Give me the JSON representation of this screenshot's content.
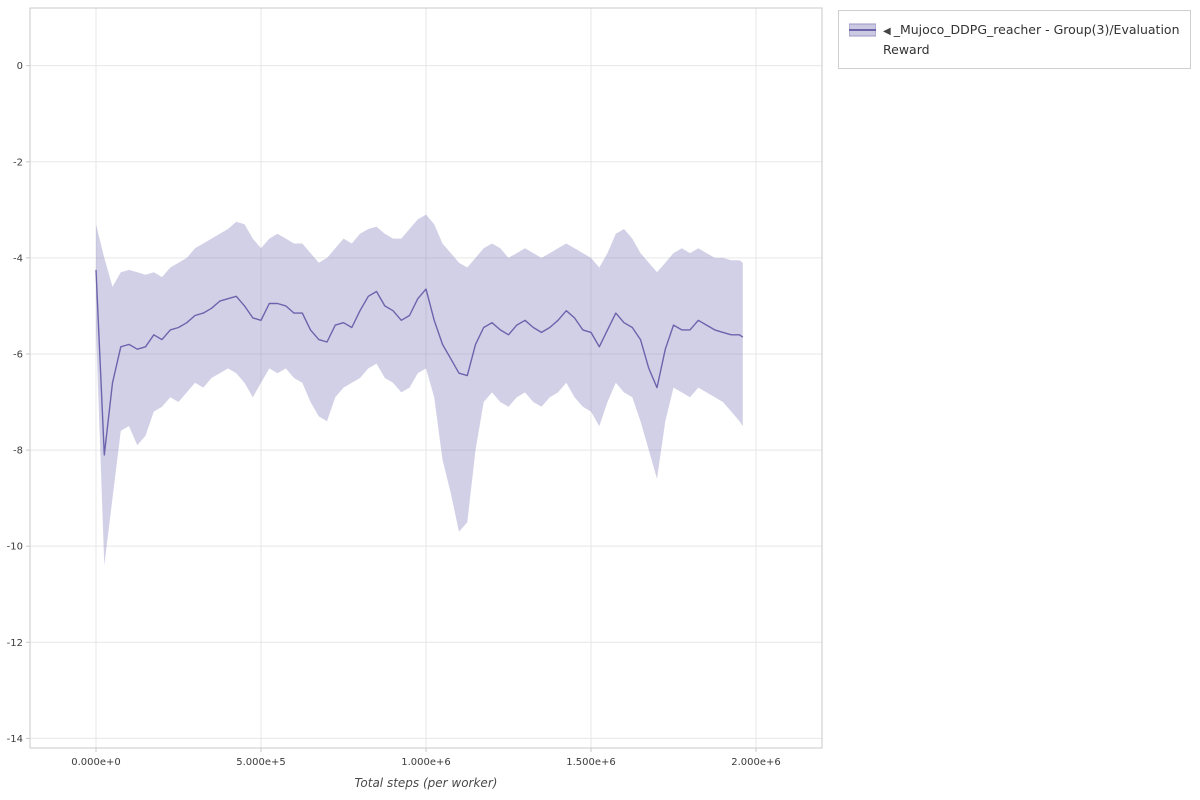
{
  "page": {
    "background": "#ffffff"
  },
  "legend": {
    "toggle_icon_glyph": "◀",
    "entry_label": "_Mujoco_DDPG_reacher - Group(3)/Evaluation Reward"
  },
  "chart_data": {
    "type": "line",
    "title": "",
    "xlabel": "Total steps (per worker)",
    "ylabel": "",
    "xlim": [
      -200000,
      2200000
    ],
    "ylim": [
      -14.2,
      1.2
    ],
    "x_ticks": [
      0,
      500000,
      1000000,
      1500000,
      2000000
    ],
    "x_tick_labels": [
      "0.000e+0",
      "5.000e+5",
      "1.000e+6",
      "1.500e+6",
      "2.000e+6"
    ],
    "y_ticks": [
      0,
      -2,
      -4,
      -6,
      -8,
      -10,
      -12,
      -14
    ],
    "grid": true,
    "legend_position": "top-right-outside",
    "colors": {
      "grid": "#e7e7e7",
      "frame": "#c9c9c9",
      "tick_text": "#3c3c3c",
      "background": "#ffffff"
    },
    "point_format": [
      "x",
      "mean",
      "band_lower",
      "band_upper"
    ],
    "series": [
      {
        "name": "_Mujoco_DDPG_reacher - Group(3)/Evaluation Reward",
        "color": "#6b64ad",
        "band_color": "#6b64ad",
        "band_opacity": 0.3,
        "points": [
          [
            0,
            -4.25,
            -5.5,
            -3.3
          ],
          [
            25000,
            -8.1,
            -10.4,
            -4.0
          ],
          [
            50000,
            -6.6,
            -9.0,
            -4.6
          ],
          [
            75000,
            -5.85,
            -7.6,
            -4.3
          ],
          [
            100000,
            -5.8,
            -7.5,
            -4.25
          ],
          [
            125000,
            -5.9,
            -7.9,
            -4.3
          ],
          [
            150000,
            -5.85,
            -7.7,
            -4.35
          ],
          [
            175000,
            -5.6,
            -7.2,
            -4.3
          ],
          [
            200000,
            -5.7,
            -7.1,
            -4.4
          ],
          [
            225000,
            -5.5,
            -6.9,
            -4.2
          ],
          [
            250000,
            -5.45,
            -7.0,
            -4.1
          ],
          [
            275000,
            -5.35,
            -6.8,
            -4.0
          ],
          [
            300000,
            -5.2,
            -6.6,
            -3.8
          ],
          [
            325000,
            -5.15,
            -6.7,
            -3.7
          ],
          [
            350000,
            -5.05,
            -6.5,
            -3.6
          ],
          [
            375000,
            -4.9,
            -6.4,
            -3.5
          ],
          [
            400000,
            -4.85,
            -6.3,
            -3.4
          ],
          [
            425000,
            -4.8,
            -6.4,
            -3.25
          ],
          [
            450000,
            -5.0,
            -6.6,
            -3.3
          ],
          [
            475000,
            -5.25,
            -6.9,
            -3.6
          ],
          [
            500000,
            -5.3,
            -6.6,
            -3.8
          ],
          [
            525000,
            -4.95,
            -6.3,
            -3.6
          ],
          [
            550000,
            -4.95,
            -6.4,
            -3.5
          ],
          [
            575000,
            -5.0,
            -6.3,
            -3.6
          ],
          [
            600000,
            -5.15,
            -6.5,
            -3.7
          ],
          [
            625000,
            -5.15,
            -6.6,
            -3.7
          ],
          [
            650000,
            -5.5,
            -7.0,
            -3.9
          ],
          [
            675000,
            -5.7,
            -7.3,
            -4.1
          ],
          [
            700000,
            -5.75,
            -7.4,
            -4.0
          ],
          [
            725000,
            -5.4,
            -6.9,
            -3.8
          ],
          [
            750000,
            -5.35,
            -6.7,
            -3.6
          ],
          [
            775000,
            -5.45,
            -6.6,
            -3.7
          ],
          [
            800000,
            -5.1,
            -6.5,
            -3.5
          ],
          [
            825000,
            -4.8,
            -6.3,
            -3.4
          ],
          [
            850000,
            -4.7,
            -6.2,
            -3.35
          ],
          [
            875000,
            -5.0,
            -6.5,
            -3.5
          ],
          [
            900000,
            -5.1,
            -6.6,
            -3.6
          ],
          [
            925000,
            -5.3,
            -6.8,
            -3.6
          ],
          [
            950000,
            -5.2,
            -6.7,
            -3.4
          ],
          [
            975000,
            -4.85,
            -6.4,
            -3.2
          ],
          [
            1000000,
            -4.65,
            -6.3,
            -3.1
          ],
          [
            1025000,
            -5.3,
            -6.9,
            -3.3
          ],
          [
            1050000,
            -5.8,
            -8.2,
            -3.7
          ],
          [
            1075000,
            -6.1,
            -8.9,
            -3.9
          ],
          [
            1100000,
            -6.4,
            -9.7,
            -4.1
          ],
          [
            1125000,
            -6.45,
            -9.5,
            -4.2
          ],
          [
            1150000,
            -5.8,
            -8.0,
            -4.0
          ],
          [
            1175000,
            -5.45,
            -7.0,
            -3.8
          ],
          [
            1200000,
            -5.35,
            -6.8,
            -3.7
          ],
          [
            1225000,
            -5.5,
            -7.0,
            -3.8
          ],
          [
            1250000,
            -5.6,
            -7.1,
            -4.0
          ],
          [
            1275000,
            -5.4,
            -6.9,
            -3.9
          ],
          [
            1300000,
            -5.3,
            -6.8,
            -3.8
          ],
          [
            1325000,
            -5.45,
            -7.0,
            -3.9
          ],
          [
            1350000,
            -5.55,
            -7.1,
            -4.0
          ],
          [
            1375000,
            -5.45,
            -6.9,
            -3.9
          ],
          [
            1400000,
            -5.3,
            -6.8,
            -3.8
          ],
          [
            1425000,
            -5.1,
            -6.6,
            -3.7
          ],
          [
            1450000,
            -5.25,
            -6.9,
            -3.8
          ],
          [
            1475000,
            -5.5,
            -7.1,
            -3.9
          ],
          [
            1500000,
            -5.55,
            -7.2,
            -4.0
          ],
          [
            1525000,
            -5.85,
            -7.5,
            -4.2
          ],
          [
            1550000,
            -5.5,
            -7.0,
            -3.9
          ],
          [
            1575000,
            -5.15,
            -6.6,
            -3.5
          ],
          [
            1600000,
            -5.35,
            -6.8,
            -3.4
          ],
          [
            1625000,
            -5.45,
            -6.9,
            -3.6
          ],
          [
            1650000,
            -5.7,
            -7.4,
            -3.9
          ],
          [
            1675000,
            -6.3,
            -8.0,
            -4.1
          ],
          [
            1700000,
            -6.7,
            -8.6,
            -4.3
          ],
          [
            1725000,
            -5.9,
            -7.4,
            -4.1
          ],
          [
            1750000,
            -5.4,
            -6.7,
            -3.9
          ],
          [
            1775000,
            -5.5,
            -6.8,
            -3.8
          ],
          [
            1800000,
            -5.5,
            -6.9,
            -3.9
          ],
          [
            1825000,
            -5.3,
            -6.7,
            -3.8
          ],
          [
            1850000,
            -5.4,
            -6.8,
            -3.9
          ],
          [
            1875000,
            -5.5,
            -6.9,
            -4.0
          ],
          [
            1900000,
            -5.55,
            -7.0,
            -4.0
          ],
          [
            1925000,
            -5.6,
            -7.2,
            -4.05
          ],
          [
            1950000,
            -5.6,
            -7.4,
            -4.05
          ],
          [
            1960000,
            -5.65,
            -7.5,
            -4.1
          ]
        ]
      }
    ]
  }
}
